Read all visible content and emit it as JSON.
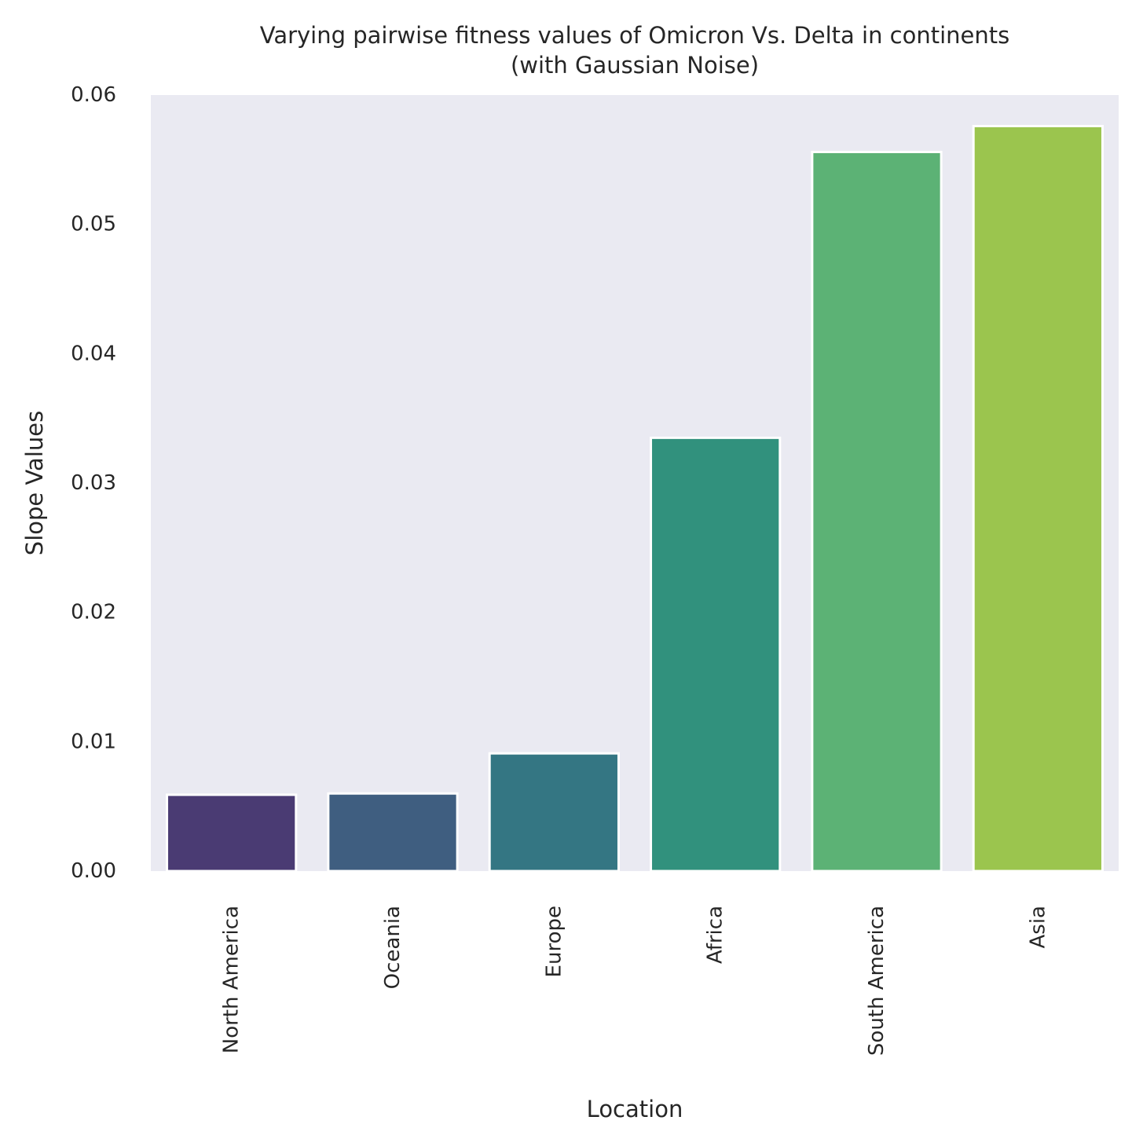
{
  "chart_data": {
    "type": "bar",
    "title_lines": [
      "Varying pairwise fitness values of Omicron Vs. Delta in continents",
      "(with Gaussian Noise)"
    ],
    "xlabel": "Location",
    "ylabel": "Slope Values",
    "categories": [
      "North America",
      "Oceania",
      "Europe",
      "Africa",
      "South America",
      "Asia"
    ],
    "values": [
      0.0059,
      0.006,
      0.0091,
      0.0335,
      0.0556,
      0.0576
    ],
    "colors": [
      "#4a3b73",
      "#3f5e80",
      "#347683",
      "#31917d",
      "#5cb275",
      "#9bc54e"
    ],
    "ylim": [
      0,
      0.06
    ],
    "yticks": [
      "0.00",
      "0.01",
      "0.02",
      "0.03",
      "0.04",
      "0.05",
      "0.06"
    ],
    "ytick_values": [
      0,
      0.01,
      0.02,
      0.03,
      0.04,
      0.05,
      0.06
    ],
    "plot_background": "#eaeaf2",
    "bar_edge_color": "#ffffff",
    "grid": false,
    "x_tick_rotation": "vertical"
  }
}
